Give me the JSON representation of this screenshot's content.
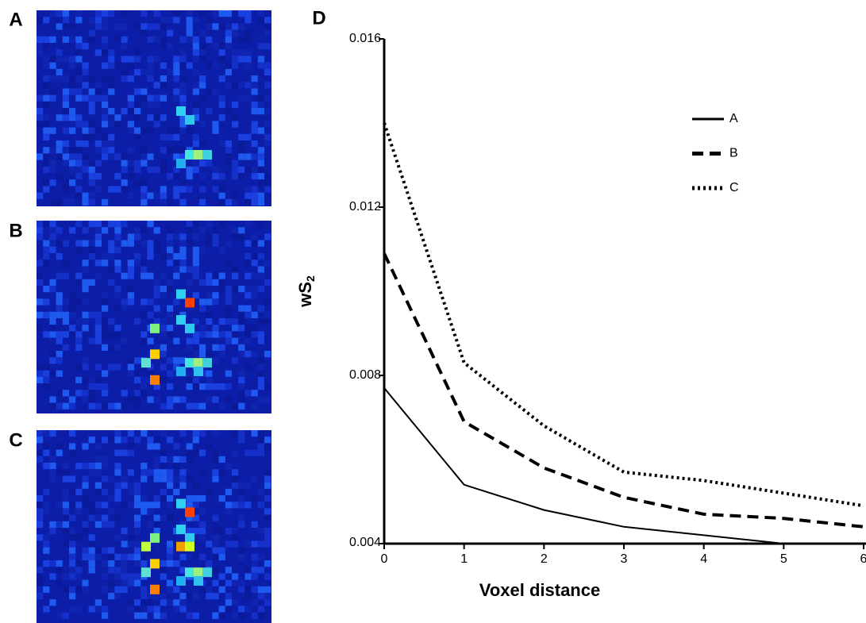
{
  "panels": [
    {
      "label": "A"
    },
    {
      "label": "B"
    },
    {
      "label": "C"
    }
  ],
  "chart_data": {
    "type": "line",
    "panel_label": "D",
    "x_label": "Voxel distance",
    "y_label": {
      "main": "wS",
      "sub": "2"
    },
    "x": [
      0,
      1,
      2,
      3,
      4,
      5,
      6
    ],
    "xlim": [
      0,
      6
    ],
    "xticks": [
      0,
      1,
      2,
      3,
      4,
      5,
      6
    ],
    "ylim": [
      0.004,
      0.016
    ],
    "yticks": [
      0.004,
      0.008,
      0.012,
      0.016
    ],
    "legend": "upper right",
    "series": [
      {
        "name": "A",
        "color": "#000000",
        "dash": "solid",
        "values": [
          0.0077,
          0.0054,
          0.0048,
          0.0044,
          0.0042,
          0.004,
          0.004
        ]
      },
      {
        "name": "B",
        "color": "#000000",
        "dash": "dashed",
        "values": [
          0.0109,
          0.0069,
          0.0058,
          0.0051,
          0.0047,
          0.0046,
          0.0044
        ]
      },
      {
        "name": "C",
        "color": "#000000",
        "dash": "dotted",
        "values": [
          0.014,
          0.0083,
          0.0068,
          0.0057,
          0.0055,
          0.0052,
          0.0049
        ]
      }
    ]
  }
}
